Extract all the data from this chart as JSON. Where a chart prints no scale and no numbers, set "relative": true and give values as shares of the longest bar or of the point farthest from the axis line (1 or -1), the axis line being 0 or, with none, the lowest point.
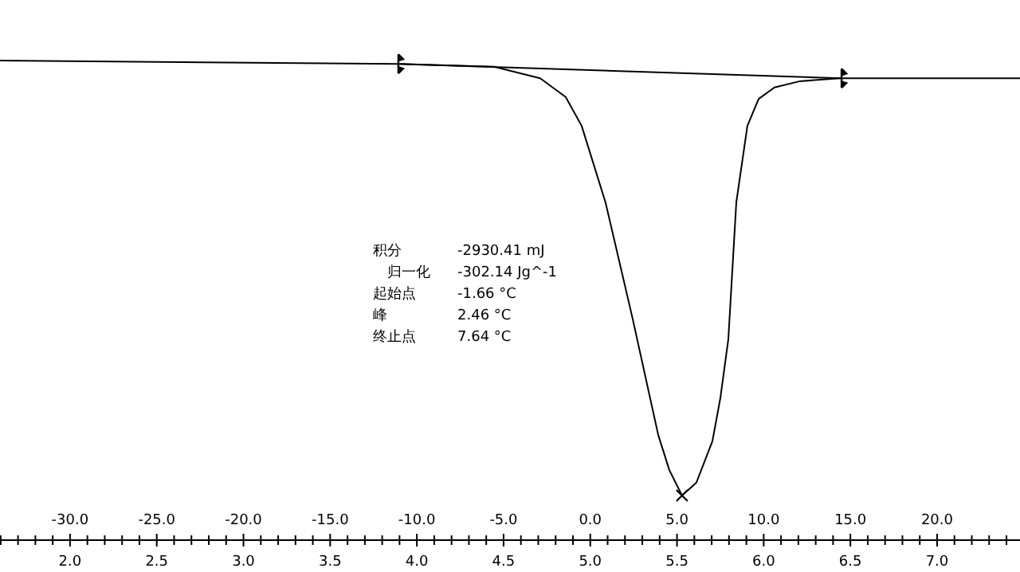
{
  "chart_data": {
    "type": "line",
    "relative": true,
    "xlim": [
      1.596,
      7.478
    ],
    "xticks": [
      {
        "value": 2,
        "label": "2.0"
      },
      {
        "value": 2.5,
        "label": "2.5"
      },
      {
        "value": 3,
        "label": "3.0"
      },
      {
        "value": 3.5,
        "label": "3.5"
      },
      {
        "value": 4,
        "label": "4.0"
      },
      {
        "value": 4.5,
        "label": "4.5"
      },
      {
        "value": 5,
        "label": "5.0"
      },
      {
        "value": 5.5,
        "label": "5.5"
      },
      {
        "value": 6,
        "label": "6.0"
      },
      {
        "value": 6.5,
        "label": "6.5"
      },
      {
        "value": 7,
        "label": "7.0"
      }
    ],
    "x2lim": [
      -34.04,
      24.78
    ],
    "x2ticks": [
      {
        "value": -30,
        "label": "-30.0"
      },
      {
        "value": -25,
        "label": "-25.0"
      },
      {
        "value": -20,
        "label": "-20.0"
      },
      {
        "value": -15,
        "label": "-15.0"
      },
      {
        "value": -10,
        "label": "-10.0"
      },
      {
        "value": -5,
        "label": "-5.0"
      },
      {
        "value": 0,
        "label": "0.0"
      },
      {
        "value": 5,
        "label": "5.0"
      },
      {
        "value": 10,
        "label": "10.0"
      },
      {
        "value": 15,
        "label": "15.0"
      },
      {
        "value": 20,
        "label": "20.0"
      }
    ],
    "series": [
      {
        "color": "#000000",
        "marker": "none",
        "x": [
          1.596,
          3.893,
          4.445,
          4.711,
          4.858,
          4.95,
          5.088,
          5.244,
          5.392,
          5.456,
          5.529,
          5.612,
          5.704,
          5.75,
          5.796,
          5.842,
          5.906,
          5.971,
          6.062,
          6.21,
          6.439,
          7.478
        ],
        "values": [
          1.0,
          0.993,
          0.987,
          0.963,
          0.924,
          0.864,
          0.704,
          0.462,
          0.219,
          0.146,
          0.093,
          0.12,
          0.206,
          0.296,
          0.419,
          0.704,
          0.864,
          0.92,
          0.944,
          0.957,
          0.963,
          0.963
        ]
      },
      {
        "type": "line",
        "color": "#000000",
        "marker": "none",
        "x": [
          3.893,
          6.449
        ],
        "values": [
          0.993,
          0.963
        ]
      },
      {
        "type": "scatter",
        "color": "#000000",
        "marker": "cross",
        "x": [
          5.529
        ],
        "values": [
          0.093
        ]
      }
    ],
    "annotations": [
      "积分",
      "-2930.41 mJ",
      "归一化",
      "-302.14 Jg^-1",
      "起始点",
      "-1.66 °C",
      "峰",
      "2.46 °C",
      "终止点",
      "7.64 °C"
    ]
  }
}
